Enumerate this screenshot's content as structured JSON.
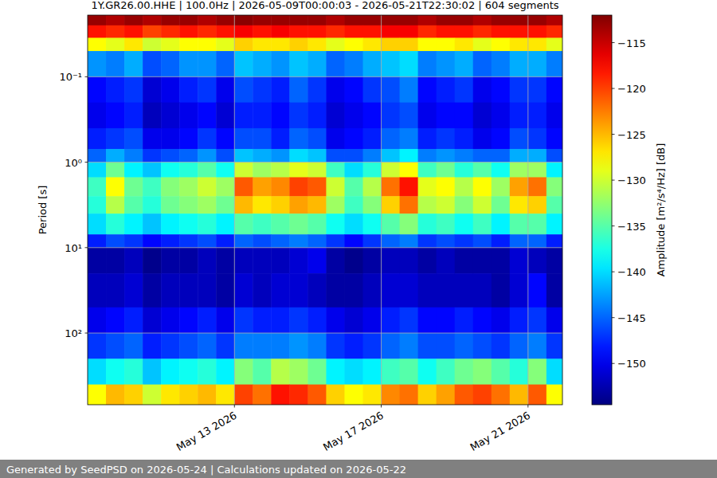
{
  "chart_data": {
    "type": "heatmap",
    "title": "1Y.GR26.00.HHE | 100.0Hz | 2026-05-09T00:00:03 - 2026-05-21T22:30:02 | 604 segments",
    "y_label": "Period [s]",
    "footer": "Generated by SeedPSD on 2026-05-24 | Calculations updated on 2026-05-22",
    "log": "y",
    "grid": true,
    "xlim": [
      "2026-05-09T00:00:03",
      "2026-05-21T22:30:02"
    ],
    "xticks": [
      {
        "value": "2026-05-13",
        "label": "May 13 2026"
      },
      {
        "value": "2026-05-17",
        "label": "May 17 2026"
      },
      {
        "value": "2026-05-21",
        "label": "May 21 2026"
      }
    ],
    "ylim": [
      0.019,
      690
    ],
    "yticks": [
      {
        "value": 0.1,
        "label": "10⁻¹"
      },
      {
        "value": 1,
        "label": "10⁰"
      },
      {
        "value": 10,
        "label": "10¹"
      },
      {
        "value": 100,
        "label": "10²"
      }
    ],
    "x": [
      "2026-05-09T00:00",
      "2026-05-09T12:00",
      "2026-05-10T00:00",
      "2026-05-10T12:00",
      "2026-05-11T00:00",
      "2026-05-11T12:00",
      "2026-05-12T00:00",
      "2026-05-12T12:00",
      "2026-05-13T00:00",
      "2026-05-13T12:00",
      "2026-05-14T00:00",
      "2026-05-14T12:00",
      "2026-05-15T00:00",
      "2026-05-15T12:00",
      "2026-05-16T00:00",
      "2026-05-16T12:00",
      "2026-05-17T00:00",
      "2026-05-17T12:00",
      "2026-05-18T00:00",
      "2026-05-18T12:00",
      "2026-05-19T00:00",
      "2026-05-19T12:00",
      "2026-05-20T00:00",
      "2026-05-20T12:00",
      "2026-05-21T00:00",
      "2026-05-21T12:00",
      "2026-05-21T22:30"
    ],
    "y": [
      0.019,
      0.025,
      0.035,
      0.05,
      0.1,
      0.2,
      0.4,
      0.7,
      1,
      1.5,
      2.5,
      4,
      7,
      10,
      20,
      50,
      100,
      200,
      400,
      690
    ],
    "values": [
      [
        -113,
        -114,
        -113,
        -114,
        -113,
        -113,
        -114,
        -113,
        -112.5,
        -113,
        -113,
        -113,
        -113,
        -114,
        -113,
        -113,
        -113,
        -113,
        -114,
        -113,
        -113,
        -114,
        -113,
        -113,
        -113,
        -114
      ],
      [
        -118,
        -119,
        -118,
        -120,
        -119,
        -118,
        -119,
        -118,
        -117,
        -118,
        -117,
        -118,
        -118,
        -119,
        -118,
        -118,
        -117,
        -117,
        -119,
        -118,
        -118,
        -119,
        -118,
        -118,
        -118,
        -119
      ],
      [
        -128,
        -129,
        -127,
        -130,
        -129,
        -128,
        -128,
        -129,
        -126,
        -127,
        -127,
        -126,
        -127,
        -129,
        -128,
        -127,
        -126,
        -126,
        -128,
        -128,
        -127,
        -129,
        -128,
        -127,
        -127,
        -129
      ],
      [
        -143,
        -144,
        -142,
        -146,
        -145,
        -143,
        -143,
        -145,
        -141,
        -142,
        -143,
        -141,
        -142,
        -145,
        -144,
        -142,
        -141,
        -140,
        -144,
        -143,
        -142,
        -145,
        -144,
        -142,
        -142,
        -144
      ],
      [
        -149,
        -148,
        -147,
        -151,
        -150,
        -148,
        -147,
        -150,
        -146,
        -147,
        -148,
        -145,
        -147,
        -150,
        -149,
        -147,
        -146,
        -144,
        -149,
        -148,
        -147,
        -150,
        -149,
        -147,
        -147,
        -149
      ],
      [
        -150,
        -149,
        -148,
        -152,
        -151,
        -150,
        -149,
        -151,
        -148,
        -148,
        -149,
        -147,
        -148,
        -151,
        -150,
        -149,
        -147,
        -146,
        -150,
        -149,
        -149,
        -151,
        -150,
        -148,
        -148,
        -150
      ],
      [
        -148,
        -147,
        -146,
        -150,
        -150,
        -149,
        -147,
        -149,
        -146,
        -146,
        -148,
        -145,
        -146,
        -150,
        -149,
        -148,
        -145,
        -144,
        -148,
        -147,
        -148,
        -150,
        -149,
        -146,
        -147,
        -149
      ],
      [
        -145,
        -142,
        -144,
        -147,
        -146,
        -145,
        -143,
        -146,
        -141,
        -142,
        -143,
        -140,
        -141,
        -146,
        -146,
        -144,
        -141,
        -139,
        -144,
        -143,
        -144,
        -145,
        -145,
        -142,
        -142,
        -146
      ],
      [
        -140,
        -134,
        -139,
        -141,
        -138,
        -137,
        -135,
        -138,
        -130,
        -132,
        -131,
        -129,
        -130,
        -136,
        -140,
        -137,
        -130,
        -128,
        -136,
        -134,
        -137,
        -135,
        -138,
        -132,
        -132,
        -139
      ],
      [
        -136,
        -128,
        -134,
        -136,
        -133,
        -132,
        -130,
        -132,
        -121,
        -124,
        -123,
        -120,
        -121,
        -130,
        -135,
        -131,
        -122,
        -118,
        -129,
        -128,
        -131,
        -128,
        -132,
        -124,
        -122,
        -133
      ],
      [
        -137,
        -131,
        -135,
        -137,
        -134,
        -133,
        -132,
        -134,
        -125,
        -127,
        -126,
        -124,
        -125,
        -132,
        -136,
        -133,
        -126,
        -122,
        -131,
        -130,
        -133,
        -130,
        -134,
        -127,
        -126,
        -135
      ],
      [
        -140,
        -137,
        -139,
        -141,
        -139,
        -138,
        -137,
        -139,
        -135,
        -136,
        -135,
        -134,
        -135,
        -138,
        -140,
        -138,
        -135,
        -133,
        -137,
        -136,
        -138,
        -136,
        -139,
        -135,
        -135,
        -139
      ],
      [
        -148,
        -146,
        -147,
        -149,
        -148,
        -147,
        -146,
        -148,
        -145,
        -146,
        -145,
        -144,
        -145,
        -147,
        -149,
        -147,
        -145,
        -144,
        -147,
        -146,
        -147,
        -146,
        -148,
        -145,
        -145,
        -148
      ],
      [
        -153,
        -153,
        -152,
        -154,
        -153,
        -153,
        -152,
        -153,
        -152,
        -152,
        -152,
        -151,
        -150,
        -153,
        -154,
        -153,
        -152,
        -152,
        -153,
        -152,
        -153,
        -153,
        -153,
        -151,
        -152,
        -153
      ],
      [
        -152,
        -152,
        -151,
        -153,
        -152,
        -152,
        -152,
        -153,
        -151,
        -152,
        -151,
        -151,
        -152,
        -153,
        -153,
        -152,
        -151,
        -151,
        -152,
        -152,
        -152,
        -152,
        -153,
        -151,
        -149,
        -153
      ],
      [
        -150,
        -149,
        -148,
        -151,
        -150,
        -149,
        -148,
        -150,
        -147,
        -148,
        -148,
        -147,
        -148,
        -150,
        -151,
        -150,
        -148,
        -147,
        -149,
        -149,
        -148,
        -149,
        -150,
        -148,
        -147,
        -150
      ],
      [
        -147,
        -146,
        -145,
        -148,
        -147,
        -146,
        -145,
        -147,
        -144,
        -144,
        -144,
        -143,
        -144,
        -147,
        -148,
        -147,
        -145,
        -144,
        -146,
        -146,
        -145,
        -146,
        -147,
        -145,
        -144,
        -147
      ],
      [
        -140,
        -138,
        -137,
        -141,
        -139,
        -138,
        -137,
        -139,
        -133,
        -135,
        -131,
        -132,
        -134,
        -139,
        -140,
        -139,
        -136,
        -135,
        -138,
        -136,
        -134,
        -133,
        -135,
        -137,
        -133,
        -140
      ],
      [
        -128,
        -125,
        -126,
        -130,
        -127,
        -126,
        -125,
        -127,
        -120,
        -122,
        -118,
        -119,
        -121,
        -126,
        -128,
        -127,
        -123,
        -122,
        -126,
        -124,
        -121,
        -120,
        -122,
        -125,
        -121,
        -128
      ]
    ],
    "colorbar": {
      "label": "Amplitude [m²/s⁴/Hz] [dB]",
      "range": [
        -154.5,
        -112
      ],
      "ticks": [
        {
          "value": -115,
          "label": "−115"
        },
        {
          "value": -120,
          "label": "−120"
        },
        {
          "value": -125,
          "label": "−125"
        },
        {
          "value": -130,
          "label": "−130"
        },
        {
          "value": -135,
          "label": "−135"
        },
        {
          "value": -140,
          "label": "−140"
        },
        {
          "value": -145,
          "label": "−145"
        },
        {
          "value": -150,
          "label": "−150"
        }
      ]
    }
  }
}
